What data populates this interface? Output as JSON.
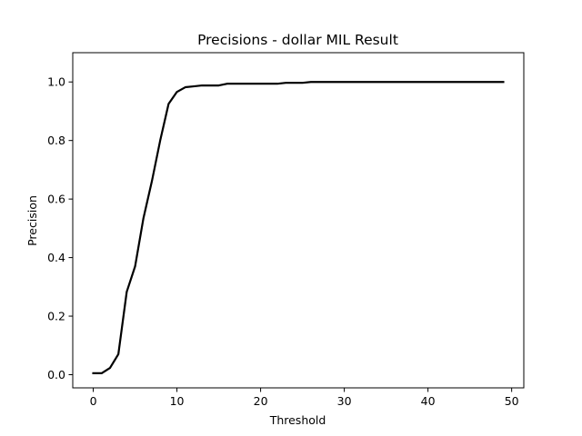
{
  "chart_data": {
    "type": "line",
    "title": "Precisions - dollar MIL Result",
    "xlabel": "Threshold",
    "ylabel": "Precision",
    "xlim": [
      -2.45,
      51.45
    ],
    "ylim": [
      -0.045,
      1.1
    ],
    "xticks": [
      0,
      10,
      20,
      30,
      40,
      50
    ],
    "yticks": [
      0.0,
      0.2,
      0.4,
      0.6,
      0.8,
      1.0
    ],
    "xtick_labels": [
      "0",
      "10",
      "20",
      "30",
      "40",
      "50"
    ],
    "ytick_labels": [
      "0.0",
      "0.2",
      "0.4",
      "0.6",
      "0.8",
      "1.0"
    ],
    "grid": false,
    "line_color": "#000000",
    "series": [
      {
        "x": [
          0,
          1,
          2,
          3,
          4,
          5,
          6,
          7,
          8,
          9,
          10,
          11,
          12,
          13,
          14,
          15,
          16,
          17,
          18,
          19,
          20,
          21,
          22,
          23,
          24,
          25,
          26,
          27,
          28,
          29,
          30,
          31,
          32,
          33,
          34,
          35,
          36,
          37,
          38,
          39,
          40,
          41,
          42,
          43,
          44,
          45,
          46,
          47,
          48,
          49
        ],
        "values": [
          0.005,
          0.005,
          0.023,
          0.07,
          0.283,
          0.37,
          0.535,
          0.66,
          0.8,
          0.925,
          0.966,
          0.982,
          0.985,
          0.988,
          0.988,
          0.988,
          0.994,
          0.994,
          0.994,
          0.994,
          0.994,
          0.994,
          0.994,
          0.997,
          0.997,
          0.997,
          1.0,
          1.0,
          1.0,
          1.0,
          1.0,
          1.0,
          1.0,
          1.0,
          1.0,
          1.0,
          1.0,
          1.0,
          1.0,
          1.0,
          1.0,
          1.0,
          1.0,
          1.0,
          1.0,
          1.0,
          1.0,
          1.0,
          1.0,
          1.0
        ]
      }
    ]
  }
}
